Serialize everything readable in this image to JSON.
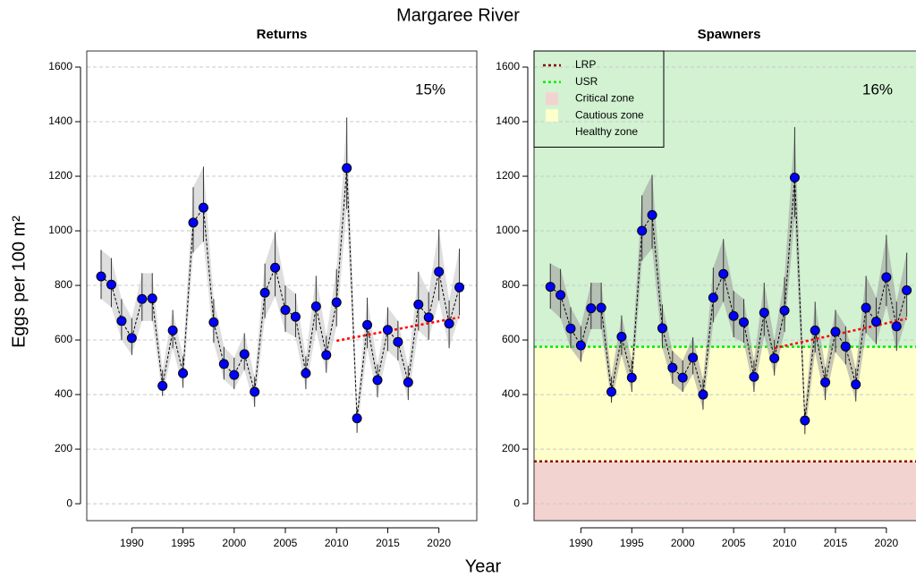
{
  "title": "Margaree River",
  "xlabel": "Year",
  "ylabel": "Eggs per 100 m²",
  "chart_data": [
    {
      "type": "line",
      "title": "Returns",
      "annotation": "15%",
      "x": [
        1987,
        1988,
        1989,
        1990,
        1991,
        1992,
        1993,
        1994,
        1995,
        1996,
        1997,
        1998,
        1999,
        2000,
        2001,
        2002,
        2003,
        2004,
        2005,
        2006,
        2007,
        2008,
        2009,
        2010,
        2011,
        2012,
        2013,
        2014,
        2015,
        2016,
        2017,
        2018,
        2019,
        2020,
        2021,
        2022
      ],
      "values": [
        833,
        803,
        670,
        607,
        750,
        752,
        432,
        635,
        478,
        1030,
        1085,
        665,
        512,
        472,
        548,
        410,
        773,
        865,
        710,
        685,
        478,
        723,
        545,
        738,
        1230,
        313,
        655,
        453,
        637,
        593,
        445,
        730,
        683,
        850,
        660,
        793
      ],
      "lower": [
        750,
        720,
        600,
        545,
        670,
        670,
        395,
        570,
        425,
        920,
        960,
        590,
        455,
        420,
        490,
        355,
        680,
        760,
        630,
        610,
        420,
        635,
        480,
        650,
        1080,
        260,
        570,
        390,
        560,
        525,
        380,
        635,
        600,
        745,
        570,
        690
      ],
      "upper": [
        930,
        900,
        750,
        680,
        845,
        845,
        490,
        710,
        540,
        1160,
        1235,
        750,
        575,
        535,
        625,
        465,
        880,
        995,
        800,
        770,
        540,
        835,
        615,
        860,
        1415,
        350,
        755,
        510,
        720,
        670,
        505,
        850,
        775,
        1005,
        745,
        935
      ],
      "color": "#0000ff",
      "band_color": "#c8c8c8",
      "trend": {
        "x": [
          2010,
          2022
        ],
        "values": [
          597,
          683
        ],
        "color": "#ff0000"
      },
      "xlim": [
        1985.6,
        2023.7
      ],
      "ylim": [
        -62,
        1659
      ],
      "xticks": [
        1990,
        1995,
        2000,
        2005,
        2010,
        2015,
        2020
      ],
      "yticks": [
        0,
        200,
        400,
        600,
        800,
        1000,
        1200,
        1400,
        1600
      ],
      "grid": true
    },
    {
      "type": "line",
      "title": "Spawners",
      "annotation": "16%",
      "x": [
        1987,
        1988,
        1989,
        1990,
        1991,
        1992,
        1993,
        1994,
        1995,
        1996,
        1997,
        1998,
        1999,
        2000,
        2001,
        2002,
        2003,
        2004,
        2005,
        2006,
        2007,
        2008,
        2009,
        2010,
        2011,
        2012,
        2013,
        2014,
        2015,
        2016,
        2017,
        2018,
        2019,
        2020,
        2021,
        2022
      ],
      "values": [
        795,
        765,
        642,
        580,
        716,
        718,
        410,
        612,
        462,
        1000,
        1058,
        643,
        498,
        462,
        535,
        400,
        755,
        842,
        688,
        665,
        465,
        700,
        533,
        708,
        1195,
        305,
        635,
        445,
        630,
        576,
        437,
        718,
        667,
        830,
        650,
        782
      ],
      "lower": [
        715,
        680,
        570,
        520,
        640,
        640,
        370,
        545,
        410,
        890,
        935,
        570,
        440,
        410,
        475,
        345,
        665,
        740,
        610,
        590,
        410,
        615,
        470,
        630,
        1050,
        255,
        555,
        380,
        555,
        510,
        375,
        625,
        585,
        725,
        560,
        685
      ],
      "upper": [
        880,
        860,
        720,
        650,
        810,
        810,
        465,
        690,
        525,
        1130,
        1205,
        730,
        560,
        525,
        610,
        455,
        865,
        970,
        780,
        750,
        525,
        810,
        600,
        830,
        1380,
        345,
        740,
        500,
        710,
        650,
        495,
        835,
        755,
        985,
        740,
        920
      ],
      "color": "#0000ff",
      "band_color": "#a0a0a0",
      "trend": {
        "x": [
          2009,
          2022
        ],
        "values": [
          570,
          678
        ],
        "color": "#ff0000"
      },
      "references": [
        {
          "name": "LRP",
          "value": 155,
          "color": "#8b0000"
        },
        {
          "name": "USR",
          "value": 575,
          "color": "#00ee00"
        }
      ],
      "zones": [
        {
          "name": "Critical zone",
          "color": "#f3d3cf"
        },
        {
          "name": "Cautious zone",
          "color": "#ffffcc"
        },
        {
          "name": "Healthy zone",
          "color": "#d2f2d2"
        }
      ],
      "legend": "top-left",
      "xlim": [
        1985.4,
        2023.7
      ],
      "ylim": [
        -62,
        1659
      ],
      "xticks": [
        1990,
        1995,
        2000,
        2005,
        2010,
        2015,
        2020
      ],
      "yticks": [
        0,
        200,
        400,
        600,
        800,
        1000,
        1200,
        1400,
        1600
      ],
      "grid": true
    }
  ]
}
